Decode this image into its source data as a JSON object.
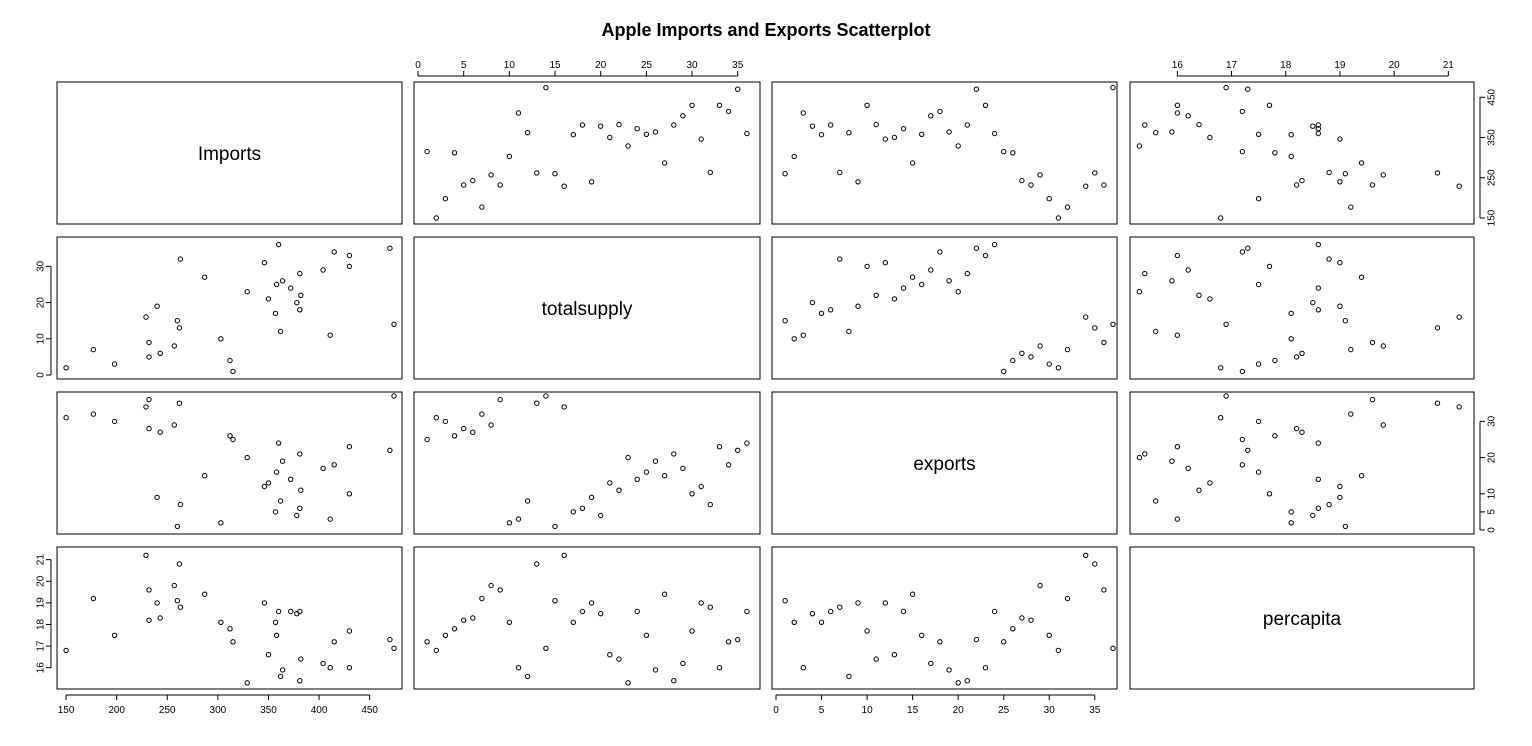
{
  "chart_data": {
    "type": "scatter",
    "title": "Apple Imports and Exports Scatterplot",
    "variables": [
      "Imports",
      "totalsupply",
      "exports",
      "percapita"
    ],
    "axis_ticks": {
      "Imports": [
        150,
        200,
        250,
        300,
        350,
        400,
        450
      ],
      "totalsupply": [
        0,
        5,
        10,
        15,
        20,
        25,
        30,
        35
      ],
      "exports": [
        0,
        5,
        10,
        15,
        20,
        25,
        30
      ],
      "percapita": [
        16,
        17,
        18,
        19,
        20,
        21
      ]
    },
    "axis_ranges": {
      "Imports": [
        145,
        478
      ],
      "totalsupply": [
        0,
        37
      ],
      "exports": [
        0,
        37
      ],
      "percapita": [
        15.2,
        21.4
      ]
    },
    "tick_labels": {
      "top": {
        "totalsupply": [
          "0",
          "5",
          "10",
          "15",
          "20",
          "25",
          "30",
          "35"
        ],
        "percapita": [
          "16",
          "17",
          "18",
          "19",
          "20",
          "21"
        ]
      },
      "right": {
        "Imports": [
          "150",
          "250",
          "350",
          "450"
        ],
        "exports": [
          "0",
          "5",
          "10",
          "20",
          "30"
        ]
      },
      "bottom": {
        "Imports": [
          "150",
          "200",
          "250",
          "300",
          "350",
          "400",
          "450"
        ],
        "exports": [
          "0",
          "5",
          "10",
          "15",
          "20",
          "25",
          "30",
          "35"
        ]
      },
      "left": {
        "totalsupply": [
          "0",
          "10",
          "20",
          "30"
        ],
        "percapita": [
          "16",
          "17",
          "18",
          "19",
          "20",
          "21"
        ]
      }
    },
    "observations": [
      {
        "Imports": 315,
        "totalsupply": 1,
        "exports": 25,
        "percapita": 17.2
      },
      {
        "Imports": 150,
        "totalsupply": 2,
        "exports": 31,
        "percapita": 16.8
      },
      {
        "Imports": 198,
        "totalsupply": 3,
        "exports": 30,
        "percapita": 17.5
      },
      {
        "Imports": 312,
        "totalsupply": 4,
        "exports": 26,
        "percapita": 17.8
      },
      {
        "Imports": 232,
        "totalsupply": 5,
        "exports": 28,
        "percapita": 18.2
      },
      {
        "Imports": 243,
        "totalsupply": 6,
        "exports": 27,
        "percapita": 18.3
      },
      {
        "Imports": 177,
        "totalsupply": 7,
        "exports": 32,
        "percapita": 19.2
      },
      {
        "Imports": 257,
        "totalsupply": 8,
        "exports": 29,
        "percapita": 19.8
      },
      {
        "Imports": 232,
        "totalsupply": 9,
        "exports": 36,
        "percapita": 19.6
      },
      {
        "Imports": 303,
        "totalsupply": 10,
        "exports": 2,
        "percapita": 18.1
      },
      {
        "Imports": 411,
        "totalsupply": 11,
        "exports": 3,
        "percapita": 16.0
      },
      {
        "Imports": 362,
        "totalsupply": 12,
        "exports": 8,
        "percapita": 15.6
      },
      {
        "Imports": 262,
        "totalsupply": 13,
        "exports": 35,
        "percapita": 20.8
      },
      {
        "Imports": 474,
        "totalsupply": 14,
        "exports": 37,
        "percapita": 16.9
      },
      {
        "Imports": 260,
        "totalsupply": 15,
        "exports": 1,
        "percapita": 19.1
      },
      {
        "Imports": 229,
        "totalsupply": 16,
        "exports": 34,
        "percapita": 21.2
      },
      {
        "Imports": 357,
        "totalsupply": 17,
        "exports": 5,
        "percapita": 18.1
      },
      {
        "Imports": 381,
        "totalsupply": 18,
        "exports": 6,
        "percapita": 18.6
      },
      {
        "Imports": 240,
        "totalsupply": 19,
        "exports": 9,
        "percapita": 19.0
      },
      {
        "Imports": 378,
        "totalsupply": 20,
        "exports": 4,
        "percapita": 18.5
      },
      {
        "Imports": 350,
        "totalsupply": 21,
        "exports": 13,
        "percapita": 16.6
      },
      {
        "Imports": 382,
        "totalsupply": 22,
        "exports": 11,
        "percapita": 16.4
      },
      {
        "Imports": 329,
        "totalsupply": 23,
        "exports": 20,
        "percapita": 15.3
      },
      {
        "Imports": 372,
        "totalsupply": 24,
        "exports": 14,
        "percapita": 18.6
      },
      {
        "Imports": 358,
        "totalsupply": 25,
        "exports": 16,
        "percapita": 17.5
      },
      {
        "Imports": 364,
        "totalsupply": 26,
        "exports": 19,
        "percapita": 15.9
      },
      {
        "Imports": 287,
        "totalsupply": 27,
        "exports": 15,
        "percapita": 19.4
      },
      {
        "Imports": 381,
        "totalsupply": 28,
        "exports": 21,
        "percapita": 15.4
      },
      {
        "Imports": 404,
        "totalsupply": 29,
        "exports": 17,
        "percapita": 16.2
      },
      {
        "Imports": 430,
        "totalsupply": 30,
        "exports": 10,
        "percapita": 17.7
      },
      {
        "Imports": 346,
        "totalsupply": 31,
        "exports": 12,
        "percapita": 19.0
      },
      {
        "Imports": 263,
        "totalsupply": 32,
        "exports": 7,
        "percapita": 18.8
      },
      {
        "Imports": 430,
        "totalsupply": 33,
        "exports": 23,
        "percapita": 16.0
      },
      {
        "Imports": 415,
        "totalsupply": 34,
        "exports": 18,
        "percapita": 17.2
      },
      {
        "Imports": 470,
        "totalsupply": 35,
        "exports": 22,
        "percapita": 17.3
      },
      {
        "Imports": 360,
        "totalsupply": 36,
        "exports": 24,
        "percapita": 18.6
      }
    ]
  }
}
